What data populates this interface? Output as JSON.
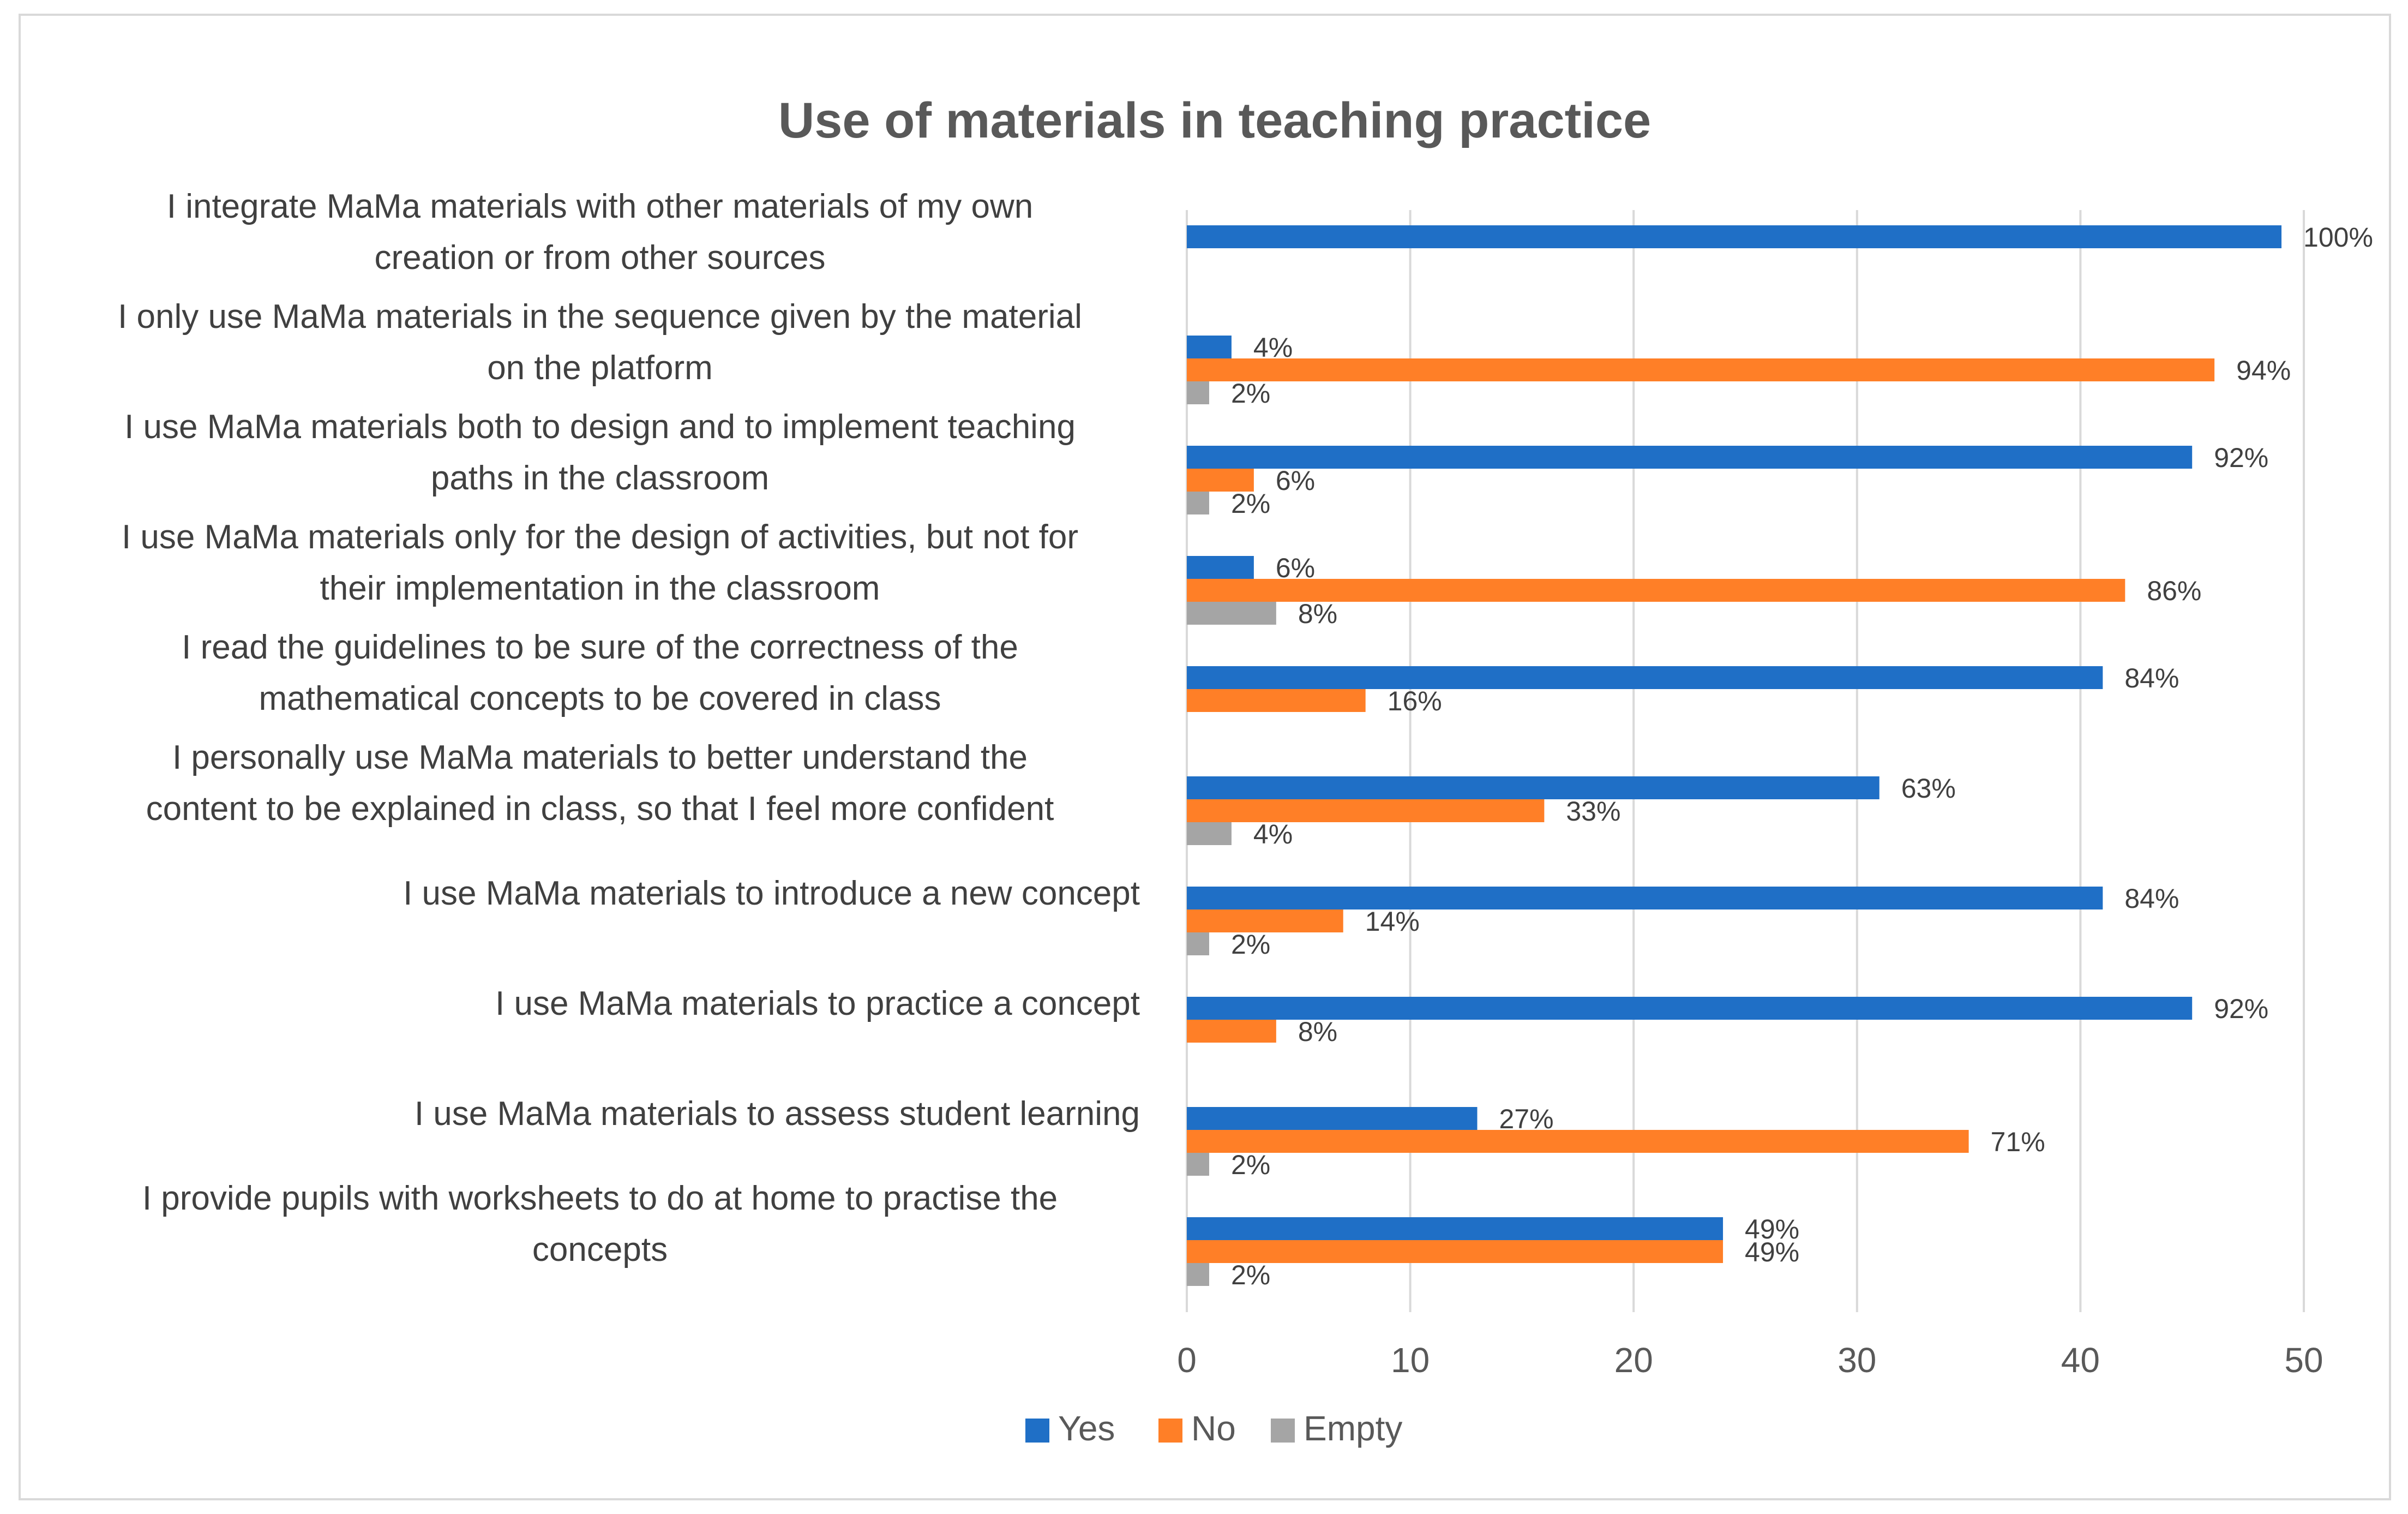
{
  "chart_data": {
    "type": "bar",
    "orientation": "horizontal",
    "title": "Use of materials in teaching practice",
    "xlabel": "",
    "ylabel": "",
    "xlim": [
      0,
      50
    ],
    "x_ticks": [
      "0",
      "10",
      "20",
      "30",
      "40",
      "50"
    ],
    "grid": "vertical",
    "legend_position": "bottom",
    "categories": [
      [
        "I integrate MaMa materials with other materials of my own",
        "creation or from other sources"
      ],
      [
        "I only use MaMa materials in the sequence given by the material",
        "on the platform"
      ],
      [
        "I use MaMa materials both to design and to implement teaching",
        "paths in the classroom"
      ],
      [
        "I use MaMa materials only for the design of activities, but not for",
        "their implementation in the classroom"
      ],
      [
        "I read the guidelines to be sure of the correctness of the",
        "mathematical concepts to be covered in class"
      ],
      [
        "I personally use MaMa materials to better understand the",
        "content to be explained in class, so that I feel more confident"
      ],
      [
        "I use MaMa materials to introduce a new concept"
      ],
      [
        "I use MaMa materials to practice a concept"
      ],
      [
        "I use MaMa materials to assess student learning"
      ],
      [
        "I provide pupils with worksheets to do at home to practise the",
        "concepts"
      ]
    ],
    "series": [
      {
        "name": "Yes",
        "color": "#1f6fc6",
        "values": [
          49,
          2,
          45,
          3,
          41,
          31,
          41,
          45,
          13,
          24
        ],
        "labels": [
          "100%",
          "4%",
          "92%",
          "6%",
          "84%",
          "63%",
          "84%",
          "92%",
          "27%",
          "49%"
        ]
      },
      {
        "name": "No",
        "color": "#ff7f27",
        "values": [
          null,
          46,
          3,
          42,
          8,
          16,
          7,
          4,
          35,
          24
        ],
        "labels": [
          null,
          "94%",
          "6%",
          "86%",
          "16%",
          "33%",
          "14%",
          "8%",
          "71%",
          "49%"
        ]
      },
      {
        "name": "Empty",
        "color": "#a5a5a5",
        "values": [
          null,
          1,
          1,
          4,
          null,
          2,
          1,
          null,
          1,
          1
        ],
        "labels": [
          null,
          "2%",
          "2%",
          "8%",
          null,
          "4%",
          "2%",
          null,
          "2%",
          "2%"
        ]
      }
    ]
  }
}
